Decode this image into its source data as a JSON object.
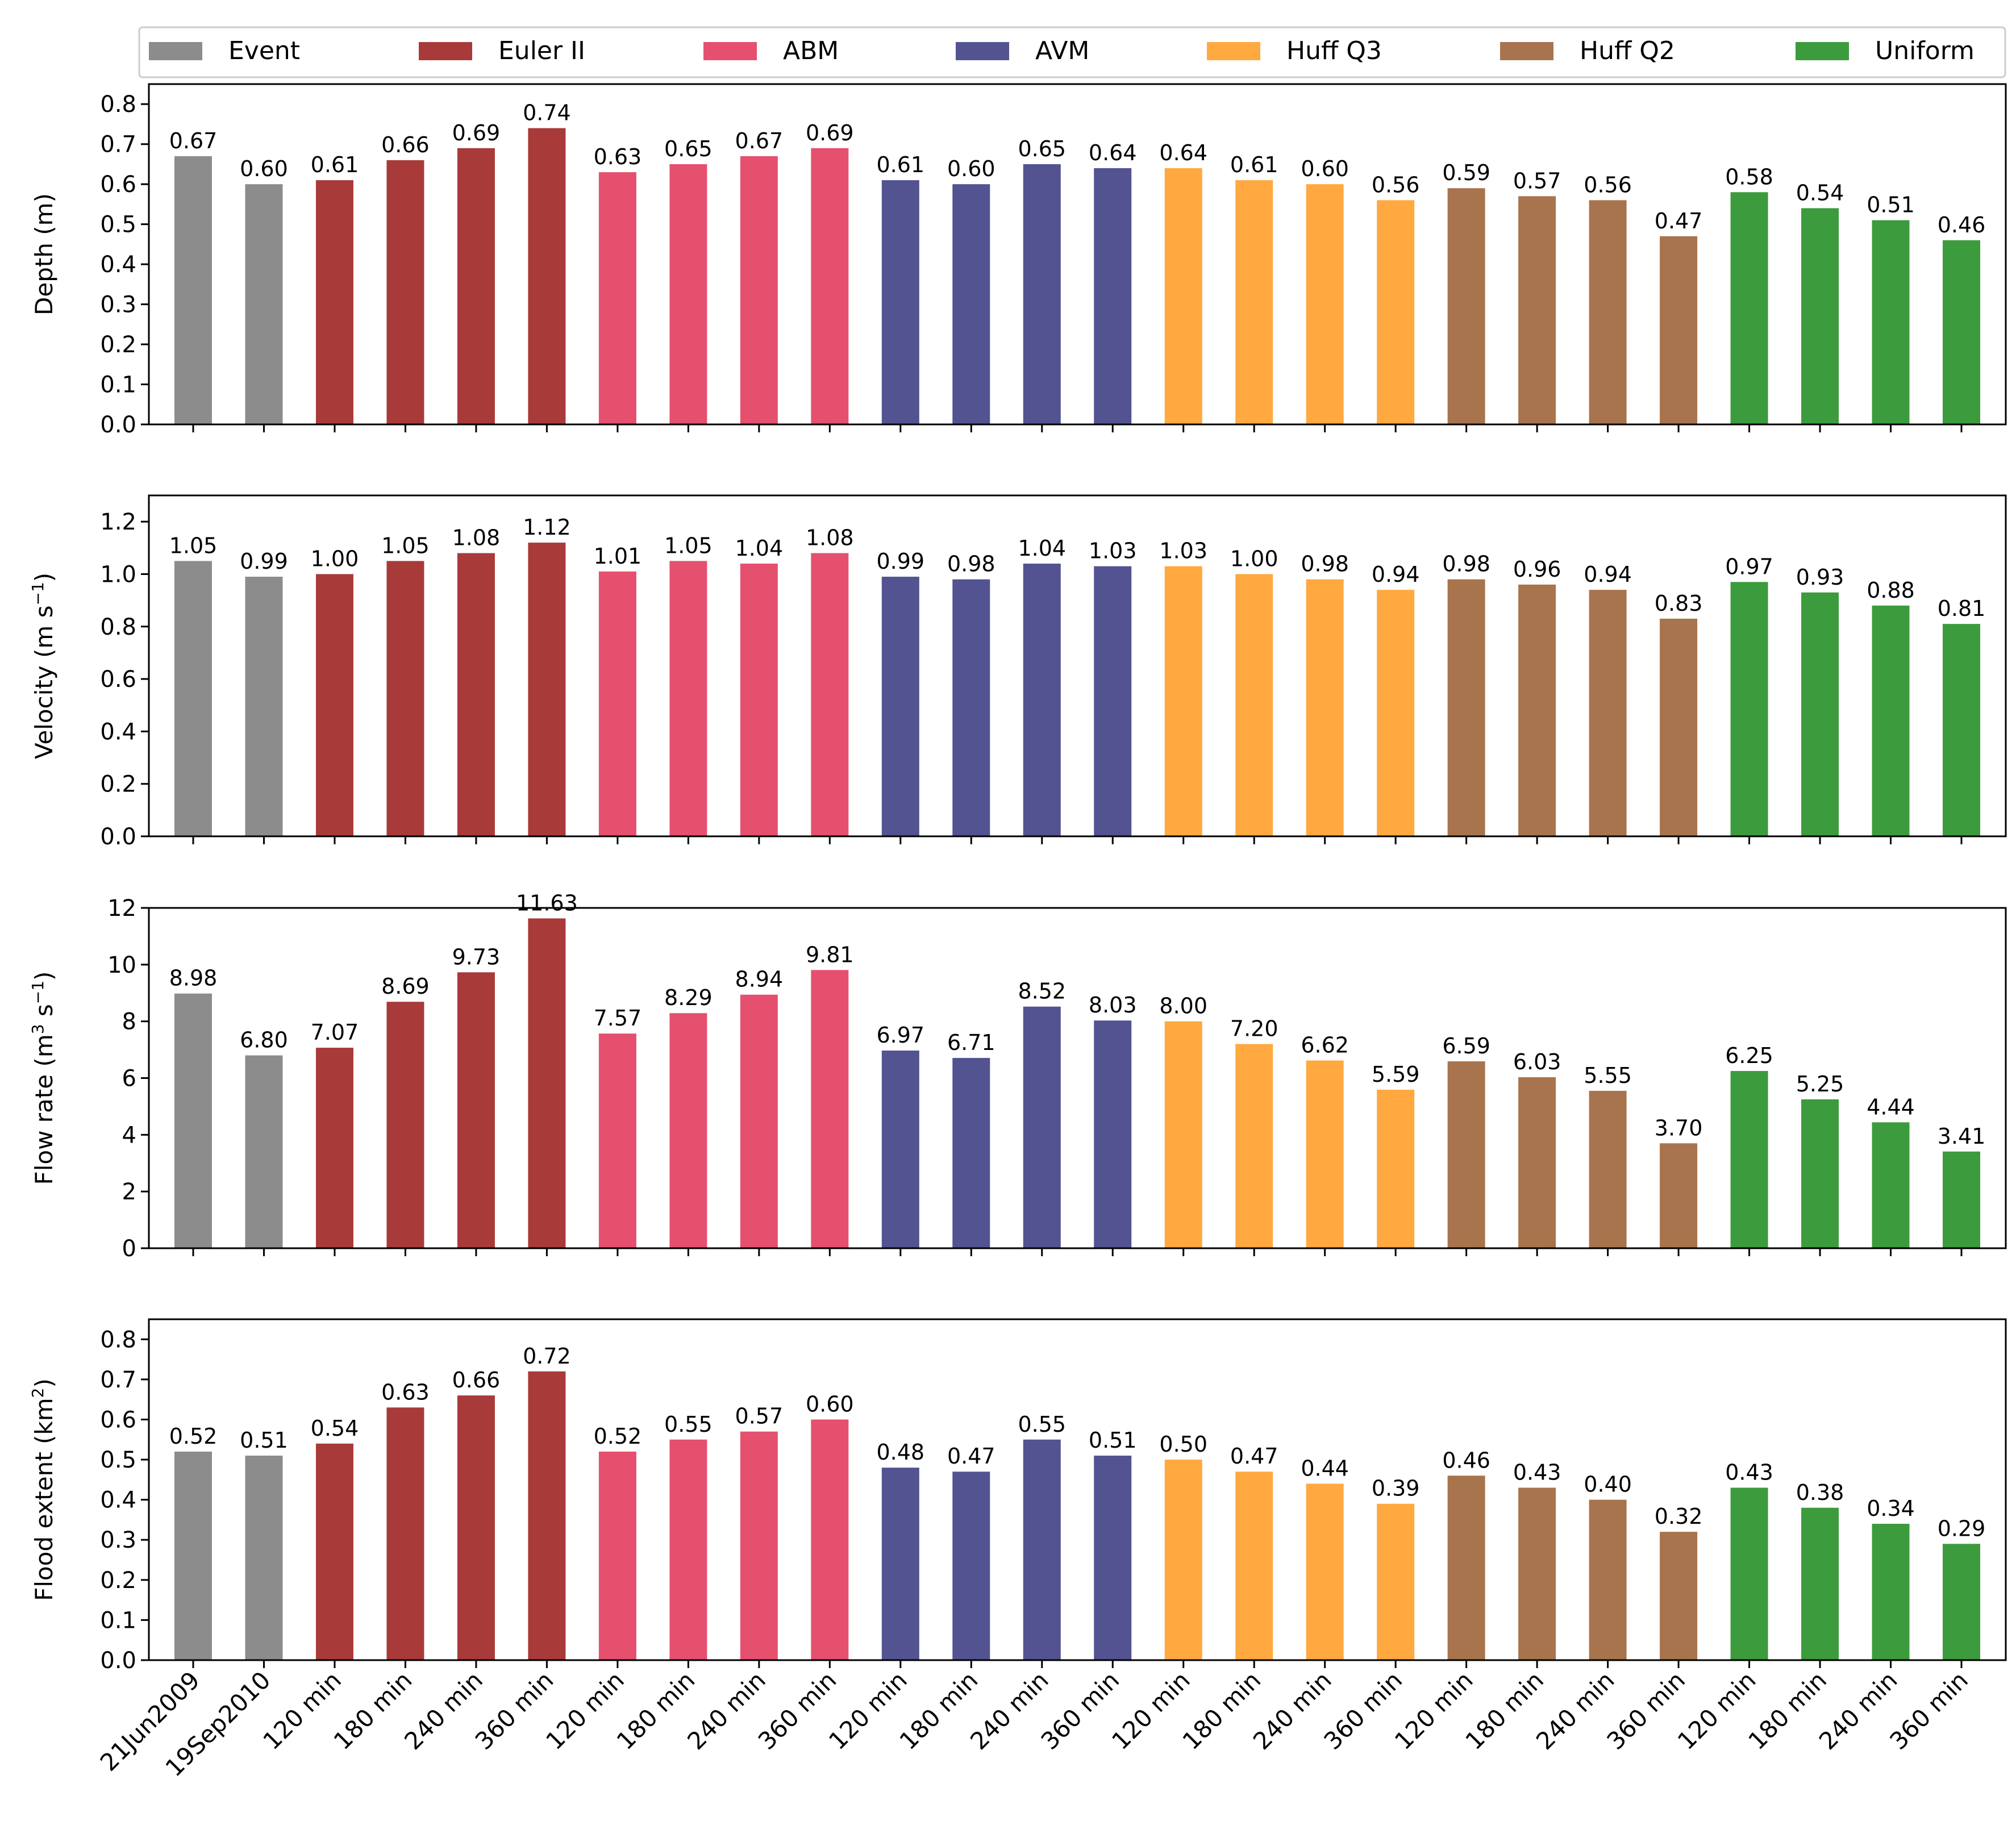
{
  "chart_data": {
    "type": "bar",
    "categories": [
      "21Jun2009",
      "19Sep2010",
      "120 min",
      "180 min",
      "240 min",
      "360 min",
      "120 min",
      "180 min",
      "240 min",
      "360 min",
      "120 min",
      "180 min",
      "240 min",
      "360 min",
      "120 min",
      "180 min",
      "240 min",
      "360 min",
      "120 min",
      "180 min",
      "240 min",
      "360 min",
      "120 min",
      "180 min",
      "240 min",
      "360 min"
    ],
    "groups": [
      {
        "name": "Event",
        "color": "#8c8c8c",
        "indices": [
          0,
          1
        ]
      },
      {
        "name": "Euler II",
        "color": "#a83a3a",
        "indices": [
          2,
          3,
          4,
          5
        ]
      },
      {
        "name": "ABM",
        "color": "#e5506e",
        "indices": [
          6,
          7,
          8,
          9
        ]
      },
      {
        "name": "AVM",
        "color": "#535392",
        "indices": [
          10,
          11,
          12,
          13
        ]
      },
      {
        "name": "Huff Q3",
        "color": "#ffa940",
        "indices": [
          14,
          15,
          16,
          17
        ]
      },
      {
        "name": "Huff Q2",
        "color": "#a8744d",
        "indices": [
          18,
          19,
          20,
          21
        ]
      },
      {
        "name": "Uniform",
        "color": "#3c9b3c",
        "indices": [
          22,
          23,
          24,
          25
        ]
      }
    ],
    "panels": [
      {
        "ylabel_main": "Depth (m)",
        "ylabel_sup": "",
        "ylabel_tail": "",
        "ylim": [
          0,
          0.85
        ],
        "yticks": [
          0.0,
          0.1,
          0.2,
          0.3,
          0.4,
          0.5,
          0.6,
          0.7,
          0.8
        ],
        "ytick_labels": [
          "0.0",
          "0.1",
          "0.2",
          "0.3",
          "0.4",
          "0.5",
          "0.6",
          "0.7",
          "0.8"
        ],
        "values": [
          0.67,
          0.6,
          0.61,
          0.66,
          0.69,
          0.74,
          0.63,
          0.65,
          0.67,
          0.69,
          0.61,
          0.6,
          0.65,
          0.64,
          0.64,
          0.61,
          0.6,
          0.56,
          0.59,
          0.57,
          0.56,
          0.47,
          0.58,
          0.54,
          0.51,
          0.46
        ],
        "labels": [
          "0.67",
          "0.60",
          "0.61",
          "0.66",
          "0.69",
          "0.74",
          "0.63",
          "0.65",
          "0.67",
          "0.69",
          "0.61",
          "0.60",
          "0.65",
          "0.64",
          "0.64",
          "0.61",
          "0.60",
          "0.56",
          "0.59",
          "0.57",
          "0.56",
          "0.47",
          "0.58",
          "0.54",
          "0.51",
          "0.46"
        ]
      },
      {
        "ylabel_main": "Velocity (m s",
        "ylabel_sup": "−1",
        "ylabel_tail": ")",
        "ylim": [
          0,
          1.3
        ],
        "yticks": [
          0.0,
          0.2,
          0.4,
          0.6,
          0.8,
          1.0,
          1.2
        ],
        "ytick_labels": [
          "0.0",
          "0.2",
          "0.4",
          "0.6",
          "0.8",
          "1.0",
          "1.2"
        ],
        "values": [
          1.05,
          0.99,
          1.0,
          1.05,
          1.08,
          1.12,
          1.01,
          1.05,
          1.04,
          1.08,
          0.99,
          0.98,
          1.04,
          1.03,
          1.03,
          1.0,
          0.98,
          0.94,
          0.98,
          0.96,
          0.94,
          0.83,
          0.97,
          0.93,
          0.88,
          0.81
        ],
        "labels": [
          "1.05",
          "0.99",
          "1.00",
          "1.05",
          "1.08",
          "1.12",
          "1.01",
          "1.05",
          "1.04",
          "1.08",
          "0.99",
          "0.98",
          "1.04",
          "1.03",
          "1.03",
          "1.00",
          "0.98",
          "0.94",
          "0.98",
          "0.96",
          "0.94",
          "0.83",
          "0.97",
          "0.93",
          "0.88",
          "0.81"
        ]
      },
      {
        "ylabel_main": "Flow rate (m",
        "ylabel_sup": "3",
        "ylabel_tail": " s",
        "ylabel_sup2": "−1",
        "ylabel_tail2": ")",
        "ylim": [
          0,
          12
        ],
        "yticks": [
          0,
          2,
          4,
          6,
          8,
          10,
          12
        ],
        "ytick_labels": [
          "0",
          "2",
          "4",
          "6",
          "8",
          "10",
          "12"
        ],
        "values": [
          8.98,
          6.8,
          7.07,
          8.69,
          9.73,
          11.63,
          7.57,
          8.29,
          8.94,
          9.81,
          6.97,
          6.71,
          8.52,
          8.03,
          8.0,
          7.2,
          6.62,
          5.59,
          6.59,
          6.03,
          5.55,
          3.7,
          6.25,
          5.25,
          4.44,
          3.41
        ],
        "labels": [
          "8.98",
          "6.80",
          "7.07",
          "8.69",
          "9.73",
          "11.63",
          "7.57",
          "8.29",
          "8.94",
          "9.81",
          "6.97",
          "6.71",
          "8.52",
          "8.03",
          "8.00",
          "7.20",
          "6.62",
          "5.59",
          "6.59",
          "6.03",
          "5.55",
          "3.70",
          "6.25",
          "5.25",
          "4.44",
          "3.41"
        ]
      },
      {
        "ylabel_main": "Flood extent (km",
        "ylabel_sup": "2",
        "ylabel_tail": ")",
        "ylim": [
          0,
          0.85
        ],
        "yticks": [
          0.0,
          0.1,
          0.2,
          0.3,
          0.4,
          0.5,
          0.6,
          0.7,
          0.8
        ],
        "ytick_labels": [
          "0.0",
          "0.1",
          "0.2",
          "0.3",
          "0.4",
          "0.5",
          "0.6",
          "0.7",
          "0.8"
        ],
        "values": [
          0.52,
          0.51,
          0.54,
          0.63,
          0.66,
          0.72,
          0.52,
          0.55,
          0.57,
          0.6,
          0.48,
          0.47,
          0.55,
          0.51,
          0.5,
          0.47,
          0.44,
          0.39,
          0.46,
          0.43,
          0.4,
          0.32,
          0.43,
          0.38,
          0.34,
          0.29
        ],
        "labels": [
          "0.52",
          "0.51",
          "0.54",
          "0.63",
          "0.66",
          "0.72",
          "0.52",
          "0.55",
          "0.57",
          "0.60",
          "0.48",
          "0.47",
          "0.55",
          "0.51",
          "0.50",
          "0.47",
          "0.44",
          "0.39",
          "0.46",
          "0.43",
          "0.40",
          "0.32",
          "0.43",
          "0.38",
          "0.34",
          "0.29"
        ]
      }
    ],
    "legend": [
      "Event",
      "Euler II",
      "ABM",
      "AVM",
      "Huff Q3",
      "Huff Q2",
      "Uniform"
    ],
    "legend_position": "top",
    "grid": false
  }
}
